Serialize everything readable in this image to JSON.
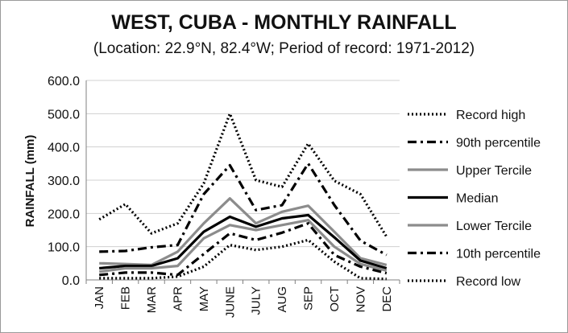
{
  "chart_data": {
    "type": "line",
    "title": "WEST, CUBA - MONTHLY RAINFALL",
    "subtitle": "(Location: 22.9°N, 82.4°W; Period of record: 1971-2012)",
    "ylabel": "RAINFALL (mm)",
    "xlabel": "",
    "ylim": [
      0,
      600
    ],
    "yticks": [
      "0.0",
      "100.0",
      "200.0",
      "300.0",
      "400.0",
      "500.0",
      "600.0"
    ],
    "categories": [
      "JAN",
      "FEB",
      "MAR",
      "APR",
      "MAY",
      "JUNE",
      "JULY",
      "AUG",
      "SEP",
      "OCT",
      "NOV",
      "DEC"
    ],
    "grid": true,
    "legend": "right",
    "series": [
      {
        "name": "Record high",
        "style": "dotted",
        "color": "#000000",
        "values": [
          182,
          228,
          140,
          170,
          290,
          500,
          300,
          280,
          410,
          298,
          258,
          130
        ]
      },
      {
        "name": "90th percentile",
        "style": "dashdot",
        "color": "#000000",
        "values": [
          85,
          87,
          98,
          105,
          258,
          345,
          210,
          225,
          350,
          225,
          118,
          75
        ]
      },
      {
        "name": "Upper Tercile",
        "style": "solid",
        "color": "#8c8c8c",
        "values": [
          50,
          48,
          45,
          85,
          170,
          245,
          170,
          205,
          223,
          145,
          65,
          45
        ]
      },
      {
        "name": "Median",
        "style": "solid",
        "color": "#000000",
        "values": [
          35,
          42,
          42,
          65,
          145,
          190,
          160,
          185,
          195,
          128,
          58,
          35
        ]
      },
      {
        "name": "Lower Tercile",
        "style": "solid",
        "color": "#8c8c8c",
        "values": [
          25,
          35,
          35,
          42,
          125,
          165,
          150,
          165,
          180,
          100,
          48,
          28
        ]
      },
      {
        "name": "10th percentile",
        "style": "dashdot",
        "color": "#000000",
        "values": [
          15,
          22,
          22,
          15,
          78,
          140,
          120,
          142,
          170,
          75,
          40,
          20
        ]
      },
      {
        "name": "Record low",
        "style": "dotted",
        "color": "#000000",
        "values": [
          5,
          5,
          5,
          10,
          40,
          105,
          90,
          100,
          120,
          55,
          5,
          3
        ]
      }
    ]
  }
}
